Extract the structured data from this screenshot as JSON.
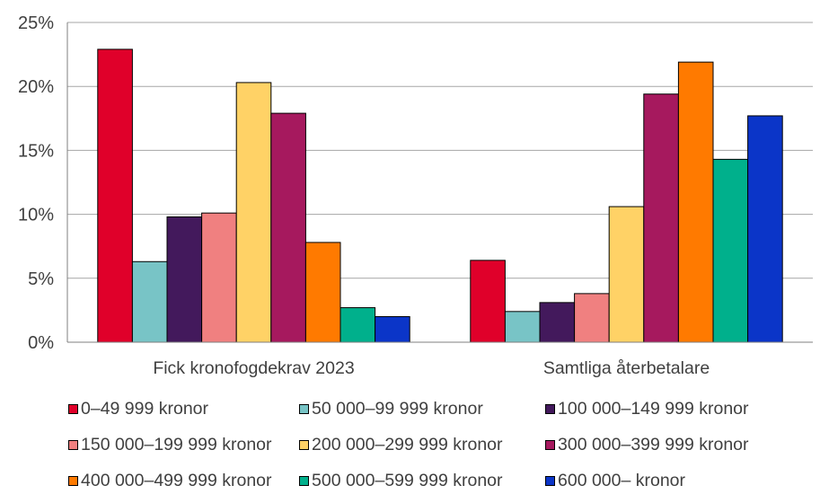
{
  "chart_data": {
    "type": "bar",
    "categories": [
      "Fick kronofogdekrav 2023",
      "Samtliga återbetalare"
    ],
    "series": [
      {
        "name": "0–49 999 kronor",
        "color": "#E0002A",
        "values": [
          22.9,
          6.4
        ]
      },
      {
        "name": "50 000–99 999 kronor",
        "color": "#78C4C6",
        "values": [
          6.3,
          2.4
        ]
      },
      {
        "name": "100 000–149 999 kronor",
        "color": "#43195C",
        "values": [
          9.8,
          3.1
        ]
      },
      {
        "name": "150 000–199 999 kronor",
        "color": "#F08080",
        "values": [
          10.1,
          3.8
        ]
      },
      {
        "name": "200 000–299 999 kronor",
        "color": "#FFD266",
        "values": [
          20.3,
          10.6
        ]
      },
      {
        "name": "300 000–399 999 kronor",
        "color": "#A6195E",
        "values": [
          17.9,
          19.4
        ]
      },
      {
        "name": "400 000–499 999 kronor",
        "color": "#FF7A00",
        "values": [
          7.8,
          21.9
        ]
      },
      {
        "name": "500 000–599 999 kronor",
        "color": "#00B08C",
        "values": [
          2.7,
          14.3
        ]
      },
      {
        "name": "600 000– kronor",
        "color": "#0B35C8",
        "values": [
          2.0,
          17.7
        ]
      }
    ],
    "ylim": [
      0,
      25
    ],
    "yticks": [
      "0%",
      "5%",
      "10%",
      "15%",
      "20%",
      "25%"
    ],
    "ytick_values": [
      0,
      5,
      10,
      15,
      20,
      25
    ],
    "grid": true,
    "legend_position": "bottom"
  }
}
